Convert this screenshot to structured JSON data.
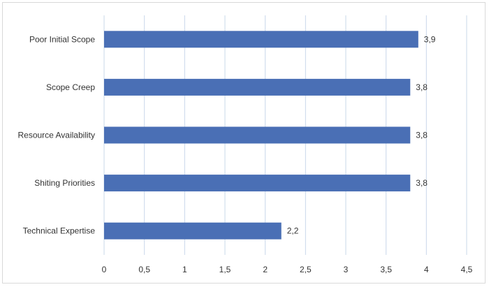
{
  "chart_data": {
    "type": "bar",
    "orientation": "horizontal",
    "categories": [
      "Poor Initial Scope",
      "Scope Creep",
      "Resource Availability",
      "Shiting Priorities",
      "Technical Expertise"
    ],
    "values": [
      3.9,
      3.8,
      3.8,
      3.8,
      2.2
    ],
    "value_labels": [
      "3,9",
      "3,8",
      "3,8",
      "3,8",
      "2,2"
    ],
    "title": "",
    "xlabel": "",
    "ylabel": "",
    "xlim": [
      0,
      4.5
    ],
    "x_ticks": [
      0,
      0.5,
      1,
      1.5,
      2,
      2.5,
      3,
      3.5,
      4,
      4.5
    ],
    "x_tick_labels": [
      "0",
      "0,5",
      "1",
      "1,5",
      "2",
      "2,5",
      "3",
      "3,5",
      "4",
      "4,5"
    ],
    "grid": "vertical",
    "legend": "none",
    "colors": {
      "bar": "#4a6fb5",
      "grid": "#c9d8ea"
    }
  }
}
